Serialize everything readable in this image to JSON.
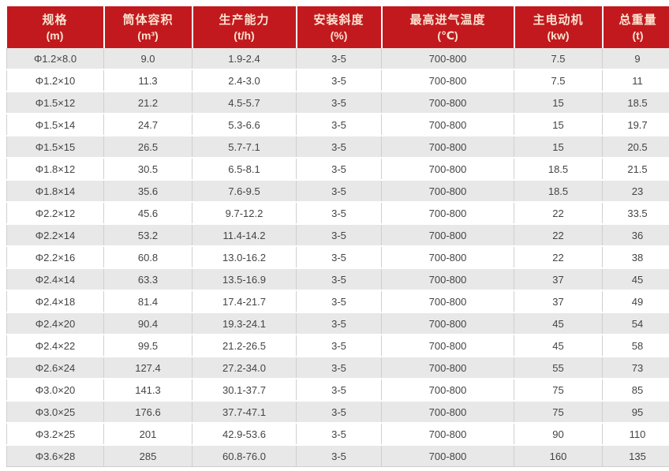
{
  "style": {
    "header_bg": "#c2191f",
    "header_text": "#fbe3d0",
    "row_bg": "#ffffff",
    "row_alt_bg": "#e8e8e8",
    "grid_color": "#cfcfcf",
    "text_color": "#444444"
  },
  "chart_data": {
    "type": "table",
    "title": "",
    "columns": [
      {
        "label": "规格",
        "unit": "(m)"
      },
      {
        "label": "筒体容积",
        "unit": "(m³)"
      },
      {
        "label": "生产能力",
        "unit": "(t/h)"
      },
      {
        "label": "安装斜度",
        "unit": "(%)"
      },
      {
        "label": "最高进气温度",
        "unit": "(℃)"
      },
      {
        "label": "主电动机",
        "unit": "(kw)"
      },
      {
        "label": "总重量",
        "unit": "(t)"
      }
    ],
    "rows": [
      [
        "Φ1.2×8.0",
        "9.0",
        "1.9-2.4",
        "3-5",
        "700-800",
        "7.5",
        "9"
      ],
      [
        "Φ1.2×10",
        "11.3",
        "2.4-3.0",
        "3-5",
        "700-800",
        "7.5",
        "11"
      ],
      [
        "Φ1.5×12",
        "21.2",
        "4.5-5.7",
        "3-5",
        "700-800",
        "15",
        "18.5"
      ],
      [
        "Φ1.5×14",
        "24.7",
        "5.3-6.6",
        "3-5",
        "700-800",
        "15",
        "19.7"
      ],
      [
        "Φ1.5×15",
        "26.5",
        "5.7-7.1",
        "3-5",
        "700-800",
        "15",
        "20.5"
      ],
      [
        "Φ1.8×12",
        "30.5",
        "6.5-8.1",
        "3-5",
        "700-800",
        "18.5",
        "21.5"
      ],
      [
        "Φ1.8×14",
        "35.6",
        "7.6-9.5",
        "3-5",
        "700-800",
        "18.5",
        "23"
      ],
      [
        "Φ2.2×12",
        "45.6",
        "9.7-12.2",
        "3-5",
        "700-800",
        "22",
        "33.5"
      ],
      [
        "Φ2.2×14",
        "53.2",
        "11.4-14.2",
        "3-5",
        "700-800",
        "22",
        "36"
      ],
      [
        "Φ2.2×16",
        "60.8",
        "13.0-16.2",
        "3-5",
        "700-800",
        "22",
        "38"
      ],
      [
        "Φ2.4×14",
        "63.3",
        "13.5-16.9",
        "3-5",
        "700-800",
        "37",
        "45"
      ],
      [
        "Φ2.4×18",
        "81.4",
        "17.4-21.7",
        "3-5",
        "700-800",
        "37",
        "49"
      ],
      [
        "Φ2.4×20",
        "90.4",
        "19.3-24.1",
        "3-5",
        "700-800",
        "45",
        "54"
      ],
      [
        "Φ2.4×22",
        "99.5",
        "21.2-26.5",
        "3-5",
        "700-800",
        "45",
        "58"
      ],
      [
        "Φ2.6×24",
        "127.4",
        "27.2-34.0",
        "3-5",
        "700-800",
        "55",
        "73"
      ],
      [
        "Φ3.0×20",
        "141.3",
        "30.1-37.7",
        "3-5",
        "700-800",
        "75",
        "85"
      ],
      [
        "Φ3.0×25",
        "176.6",
        "37.7-47.1",
        "3-5",
        "700-800",
        "75",
        "95"
      ],
      [
        "Φ3.2×25",
        "201",
        "42.9-53.6",
        "3-5",
        "700-800",
        "90",
        "110"
      ],
      [
        "Φ3.6×28",
        "285",
        "60.8-76.0",
        "3-5",
        "700-800",
        "160",
        "135"
      ]
    ]
  }
}
